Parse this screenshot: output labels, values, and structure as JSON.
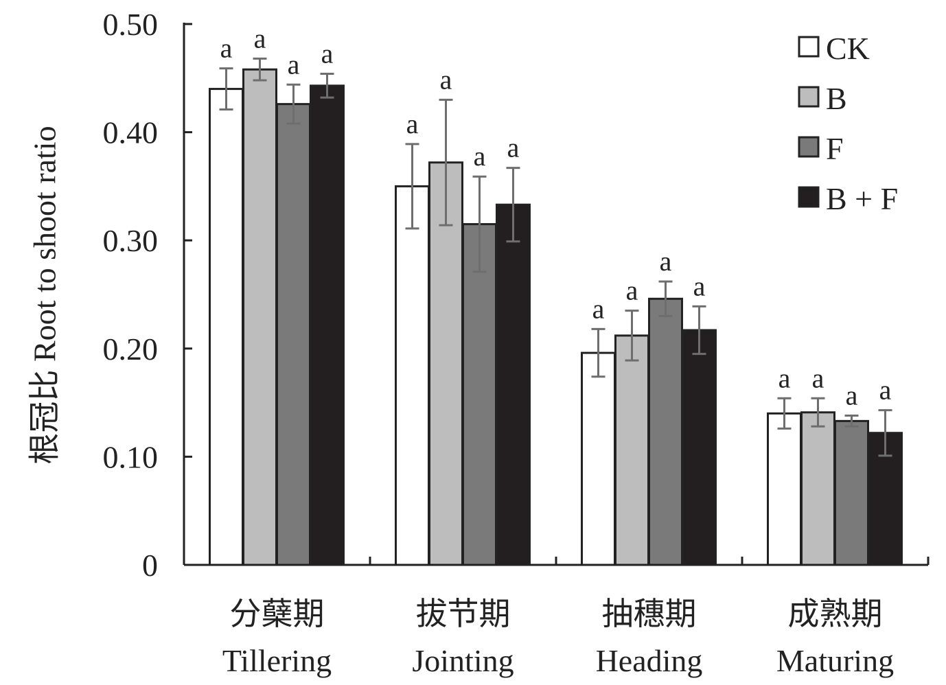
{
  "chart_data": {
    "type": "bar",
    "title": "",
    "ylabel": "根冠比 Root to shoot ratio",
    "xlabel": "",
    "ylim": [
      0,
      0.5
    ],
    "yticks": [
      0,
      0.1,
      0.2,
      0.3,
      0.4,
      0.5
    ],
    "ytick_labels": [
      "0",
      "0.10",
      "0.20",
      "0.30",
      "0.40",
      "0.50"
    ],
    "categories": [
      {
        "zh": "分蘖期",
        "en": "Tillering"
      },
      {
        "zh": "拔节期",
        "en": "Jointing"
      },
      {
        "zh": "抽穗期",
        "en": "Heading"
      },
      {
        "zh": "成熟期",
        "en": "Maturing"
      }
    ],
    "series": [
      {
        "name": "CK",
        "color": "#ffffff",
        "values": [
          0.44,
          0.35,
          0.196,
          0.14
        ],
        "errors": [
          0.019,
          0.039,
          0.022,
          0.014
        ],
        "letters": [
          "a",
          "a",
          "a",
          "a"
        ]
      },
      {
        "name": "B",
        "color": "#bdbdbd",
        "values": [
          0.458,
          0.372,
          0.212,
          0.141
        ],
        "errors": [
          0.01,
          0.058,
          0.023,
          0.013
        ],
        "letters": [
          "a",
          "a",
          "a",
          "a"
        ]
      },
      {
        "name": "F",
        "color": "#7a7a7a",
        "values": [
          0.426,
          0.315,
          0.246,
          0.133
        ],
        "errors": [
          0.018,
          0.044,
          0.016,
          0.005
        ],
        "letters": [
          "a",
          "a",
          "a",
          "a"
        ]
      },
      {
        "name": "B + F",
        "color": "#231f20",
        "values": [
          0.443,
          0.333,
          0.217,
          0.122
        ],
        "errors": [
          0.011,
          0.034,
          0.022,
          0.021
        ],
        "letters": [
          "a",
          "a",
          "a",
          "a"
        ]
      }
    ],
    "legend_position": "top-right",
    "grid": false,
    "error_bar_color": "#6e6e6e"
  }
}
